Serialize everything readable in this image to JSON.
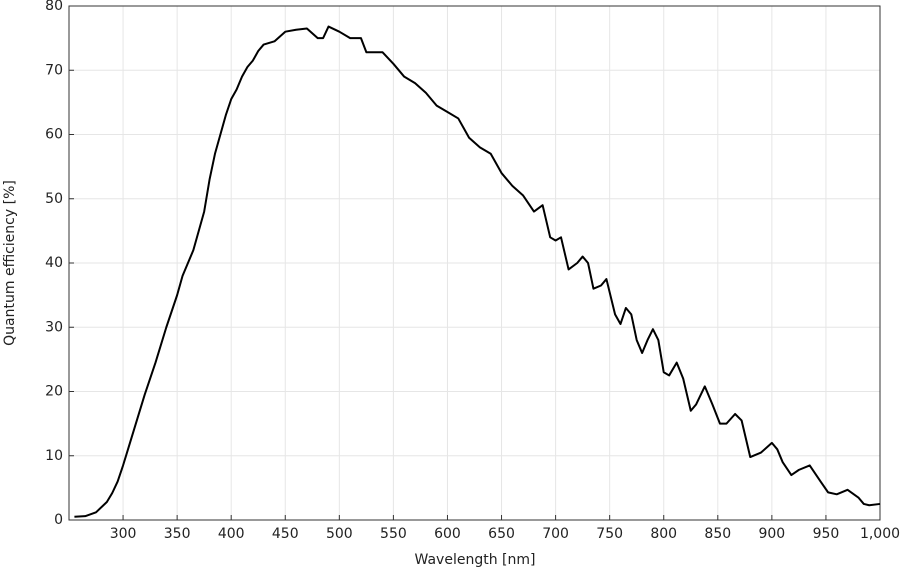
{
  "chart_data": {
    "type": "line",
    "x_label": "Wavelength [nm]",
    "y_label": "Quantum efficiency [%]",
    "xlim": [
      250,
      1000
    ],
    "ylim": [
      0,
      80
    ],
    "xticks": [
      300,
      350,
      400,
      450,
      500,
      550,
      600,
      650,
      700,
      750,
      800,
      850,
      900,
      950,
      {
        "value": 1000,
        "label": "1,000"
      }
    ],
    "yticks": [
      0,
      10,
      20,
      30,
      40,
      50,
      60,
      70,
      80
    ],
    "grid": true,
    "color": "#000000",
    "x": [
      255,
      265,
      275,
      285,
      290,
      295,
      300,
      310,
      320,
      330,
      340,
      350,
      355,
      360,
      365,
      370,
      375,
      380,
      385,
      390,
      395,
      400,
      405,
      410,
      415,
      420,
      425,
      430,
      440,
      450,
      460,
      470,
      480,
      485,
      490,
      500,
      510,
      520,
      525,
      540,
      550,
      560,
      570,
      580,
      590,
      600,
      610,
      620,
      630,
      640,
      650,
      660,
      670,
      680,
      688,
      695,
      700,
      705,
      712,
      720,
      725,
      730,
      735,
      742,
      747,
      755,
      760,
      765,
      770,
      775,
      780,
      785,
      790,
      795,
      800,
      805,
      812,
      818,
      825,
      830,
      838,
      845,
      852,
      858,
      866,
      872,
      880,
      890,
      900,
      905,
      910,
      918,
      925,
      935,
      945,
      952,
      960,
      970,
      980,
      985,
      990,
      1000
    ],
    "values": [
      0.5,
      0.6,
      1.2,
      2.8,
      4.2,
      6,
      8.5,
      14,
      19.5,
      24.5,
      30,
      35,
      38,
      40,
      42,
      45,
      48,
      53,
      57,
      60,
      63,
      65.5,
      67,
      69,
      70.5,
      71.5,
      73,
      74,
      74.5,
      76,
      76.3,
      76.5,
      75,
      75,
      76.8,
      76,
      75,
      75,
      72.8,
      72.8,
      71,
      69,
      68,
      66.5,
      64.5,
      63.5,
      62.5,
      59.5,
      58,
      57,
      54,
      52,
      50.5,
      48,
      49,
      44,
      43.5,
      44,
      39,
      40,
      41,
      40,
      36,
      36.5,
      37.5,
      32,
      30.5,
      33,
      32,
      28,
      26,
      28,
      29.7,
      28,
      23,
      22.5,
      24.5,
      22,
      17,
      18,
      20.8,
      18,
      15,
      15,
      16.5,
      15.5,
      9.8,
      10.5,
      12,
      11,
      9,
      7,
      7.8,
      8.5,
      6,
      4.3,
      4,
      4.7,
      3.5,
      2.5,
      2.3,
      2.5
    ]
  }
}
